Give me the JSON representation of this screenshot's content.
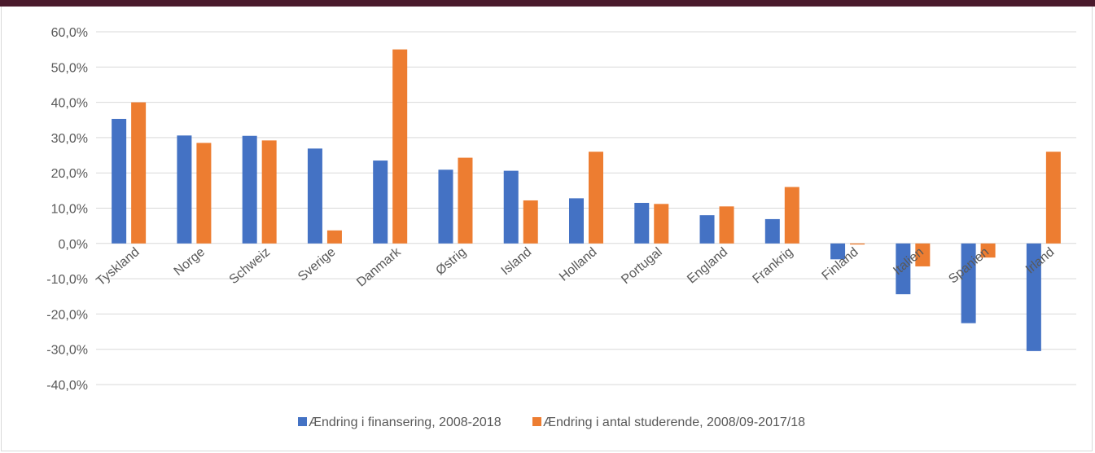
{
  "chart_data": {
    "type": "bar",
    "categories": [
      "Tyskland",
      "Norge",
      "Schweiz",
      "Sverige",
      "Danmark",
      "Østrig",
      "Island",
      "Holland",
      "Portugal",
      "England",
      "Frankrig",
      "Finland",
      "Italien",
      "Spanien",
      "Irland"
    ],
    "series": [
      {
        "name": "Ændring i finansering, 2008-2018",
        "color": "#4472c4",
        "values": [
          35.3,
          30.6,
          30.5,
          26.9,
          23.5,
          20.9,
          20.6,
          12.8,
          11.5,
          8.0,
          6.9,
          -4.5,
          -14.4,
          -22.6,
          -30.5
        ]
      },
      {
        "name": "Ændring i antal studerende, 2008/09-2017/18",
        "color": "#ed7d31",
        "values": [
          40.0,
          28.5,
          29.2,
          3.7,
          55.0,
          24.3,
          12.2,
          26.0,
          11.2,
          10.5,
          16.0,
          -0.3,
          -6.5,
          -4.0,
          26.0
        ]
      }
    ],
    "ylim": [
      -40,
      60
    ],
    "yticks": [
      "60,0%",
      "50,0%",
      "40,0%",
      "30,0%",
      "20,0%",
      "10,0%",
      "0,0%",
      "-10,0%",
      "-20,0%",
      "-30,0%",
      "-40,0%"
    ],
    "ytick_values": [
      60,
      50,
      40,
      30,
      20,
      10,
      0,
      -10,
      -20,
      -30,
      -40
    ],
    "grid": true,
    "legend": "bottom",
    "title": "",
    "xlabel": "",
    "ylabel": ""
  }
}
